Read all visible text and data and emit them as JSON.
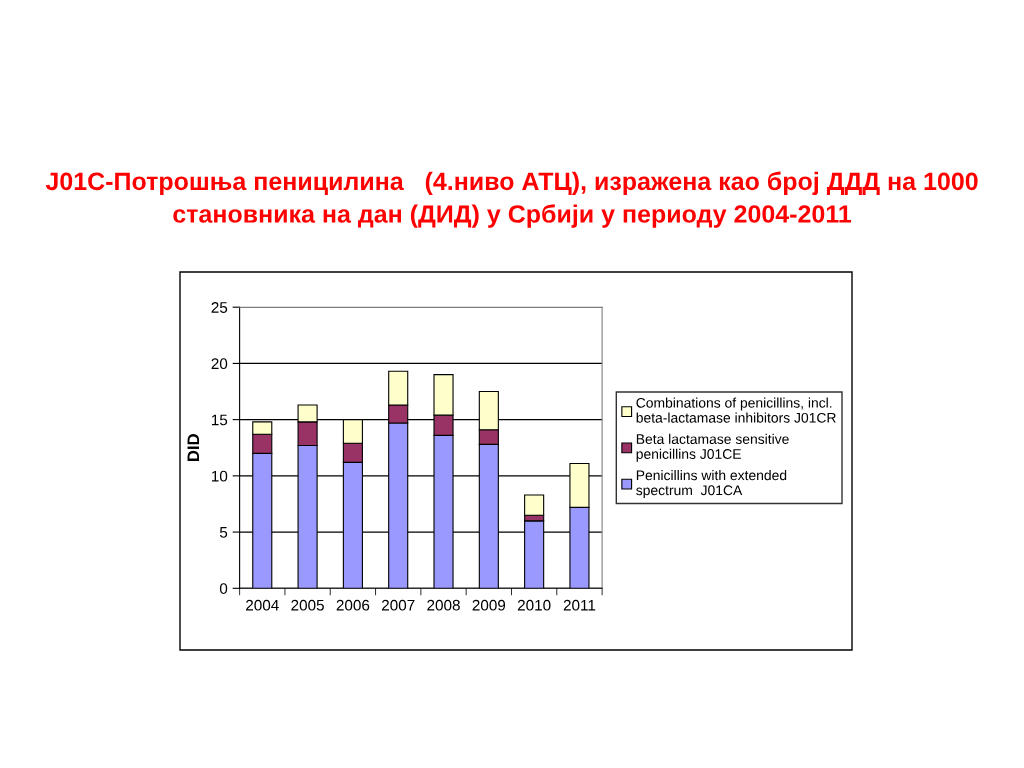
{
  "chart_data": {
    "type": "bar",
    "stacked": true,
    "title": "J01C-Потрошња пеницилина   (4.ниво АТЦ), изражена као број ДДД на 1000 становника на дан (ДИД) у Србији у периоду 2004-2011",
    "ylabel": "DID",
    "categories": [
      "2004",
      "2005",
      "2006",
      "2007",
      "2008",
      "2009",
      "2010",
      "2011"
    ],
    "series": [
      {
        "name": "Penicillins with extended\nspectrum  J01CA",
        "color": "#9999ff",
        "values": [
          12.0,
          12.7,
          11.2,
          14.7,
          13.6,
          12.8,
          6.0,
          7.2
        ]
      },
      {
        "name": "Beta lactamase sensitive\npenicillins J01CE",
        "color": "#993366",
        "values": [
          1.7,
          2.1,
          1.7,
          1.6,
          1.8,
          1.3,
          0.5,
          null
        ]
      },
      {
        "name": "Combinations of penicillins, incl.\nbeta-lactamase inhibitors J01CR",
        "color": "#ffffcc",
        "values": [
          1.1,
          1.5,
          2.1,
          3.0,
          3.6,
          3.4,
          1.8,
          3.9
        ]
      }
    ],
    "ylim": [
      0,
      25
    ],
    "yticks": [
      0,
      5,
      10,
      15,
      20,
      25
    ],
    "grid": "y",
    "legend": "right"
  }
}
